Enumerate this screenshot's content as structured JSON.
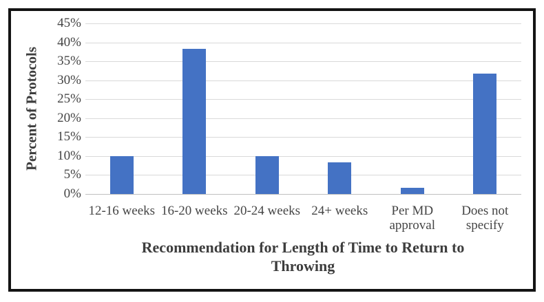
{
  "chart_data": {
    "type": "bar",
    "title": "",
    "xlabel": "Recommendation for Length of Time to Return to Throwing",
    "ylabel": "Percent of Protocols",
    "categories": [
      "12-16 weeks",
      "16-20 weeks",
      "20-24 weeks",
      "24+ weeks",
      "Per MD approval",
      "Does not specify"
    ],
    "values": [
      10,
      38.3,
      10,
      8.3,
      1.7,
      31.7
    ],
    "ylim": [
      0,
      45
    ],
    "ytick_step": 5,
    "ytick_labels": [
      "0%",
      "5%",
      "10%",
      "15%",
      "20%",
      "25%",
      "30%",
      "35%",
      "40%",
      "45%"
    ],
    "grid": true,
    "legend": "none",
    "colors": {
      "bar": "#4472c4",
      "gridline": "#d9d9d9",
      "baseline": "#bfbfbf",
      "axis_text": "#454545",
      "axis_title_text": "#3d3d3d",
      "frame_border": "#141414"
    }
  }
}
